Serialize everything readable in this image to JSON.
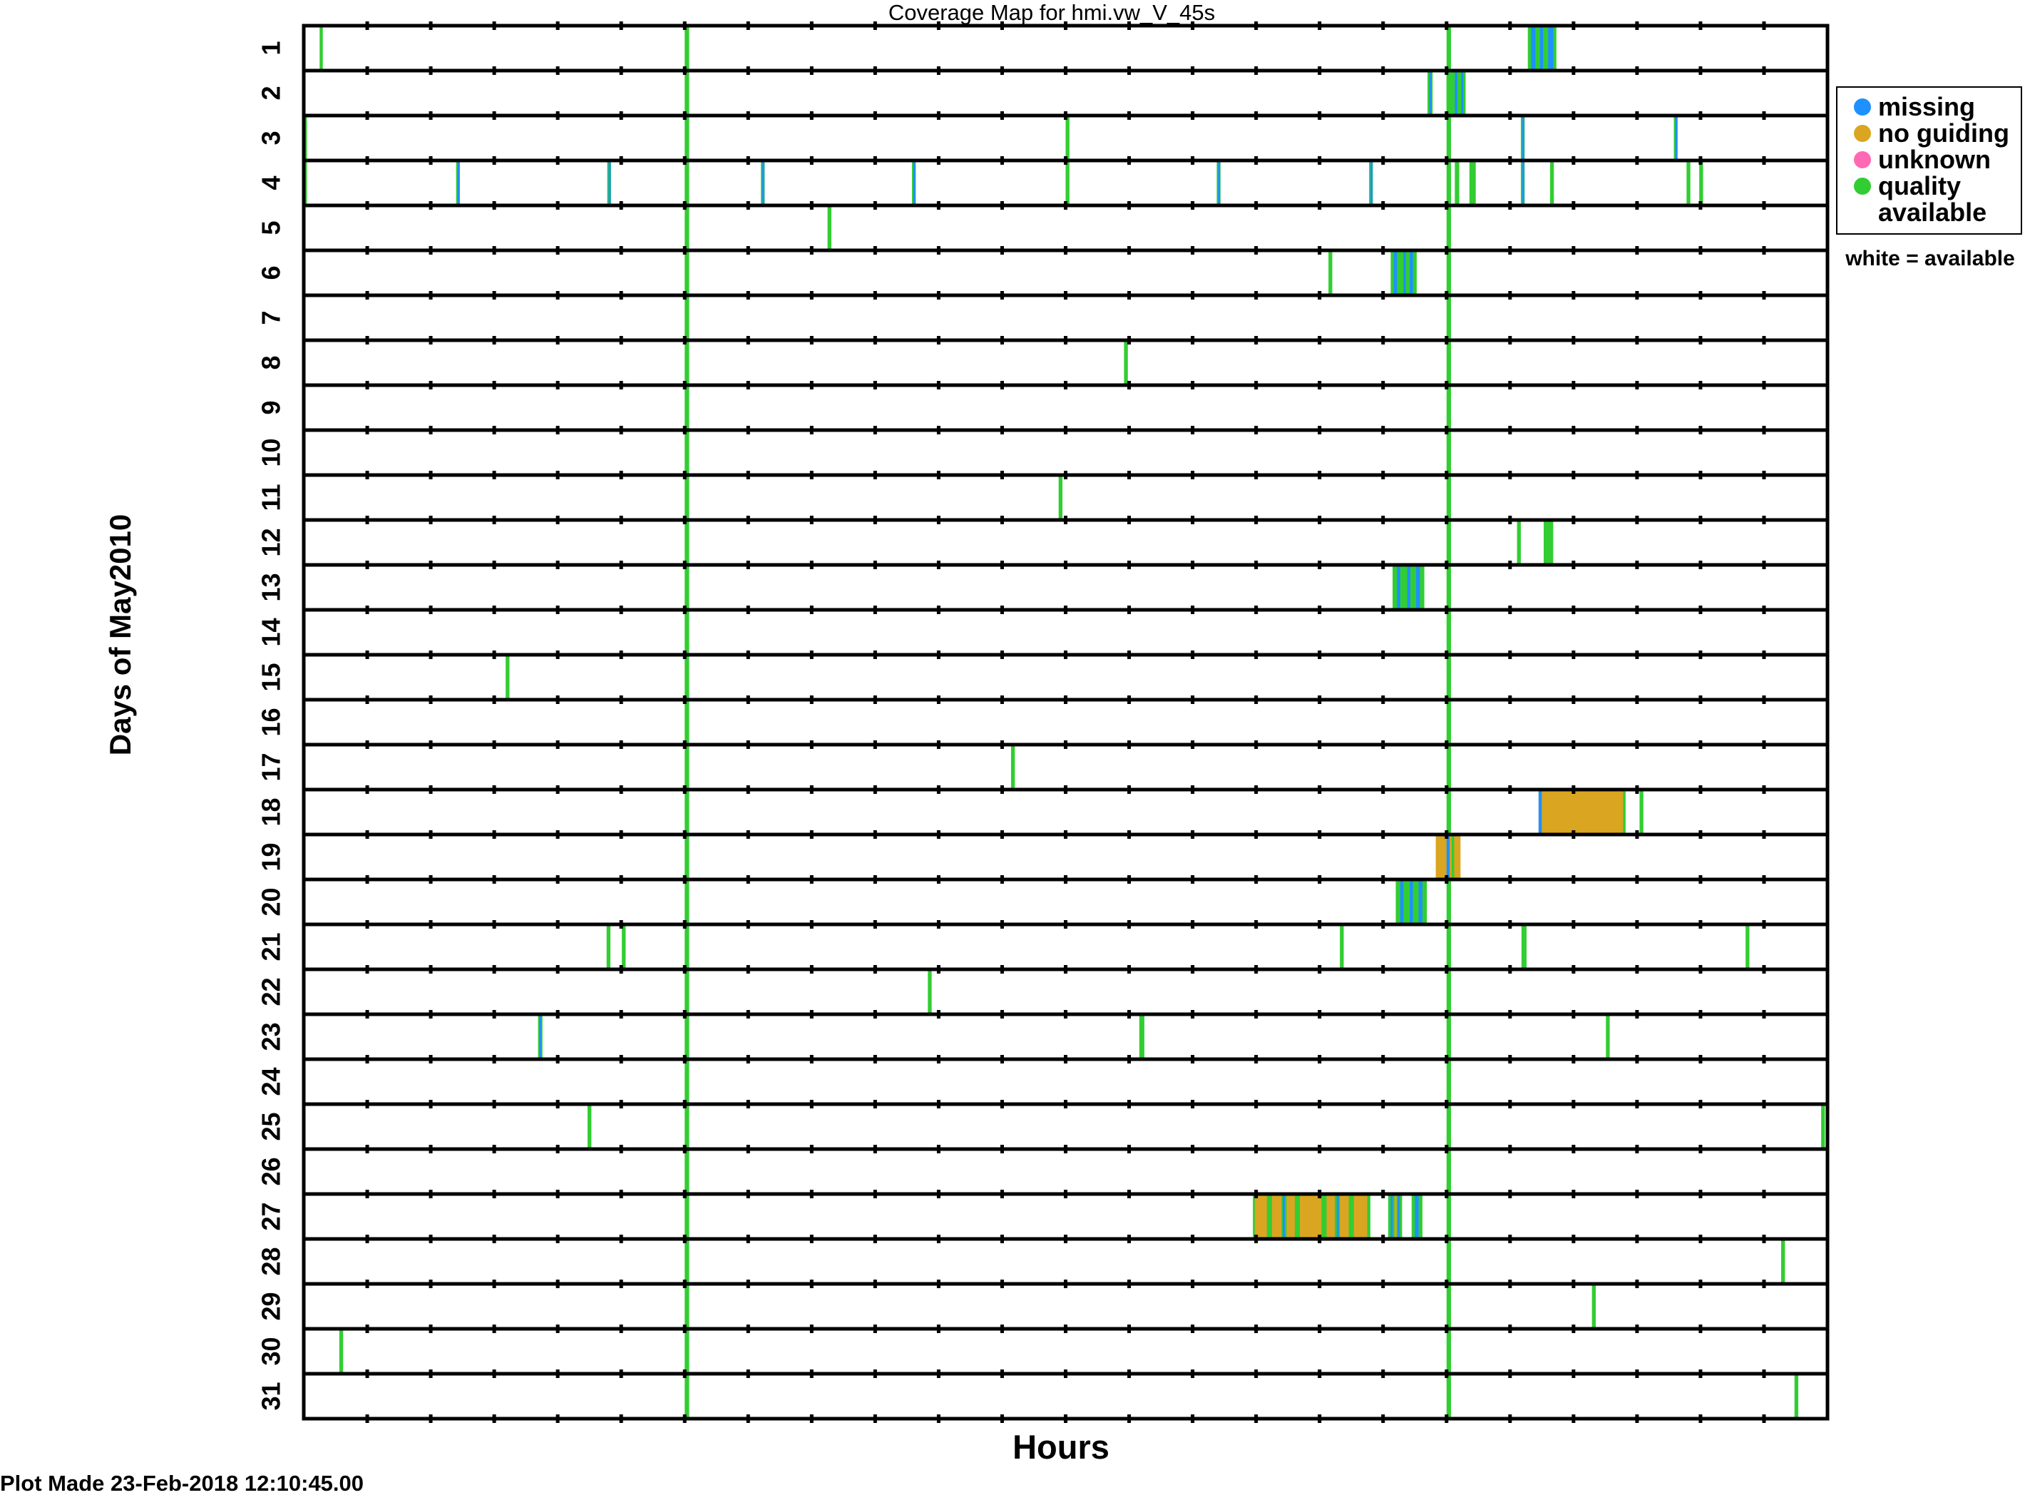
{
  "chart_data": {
    "type": "heatmap",
    "title": "Coverage Map for hmi.vw_V_45s",
    "xlabel": "Hours",
    "ylabel": "Days of May2010",
    "xlim": [
      0,
      24
    ],
    "days": [
      1,
      2,
      3,
      4,
      5,
      6,
      7,
      8,
      9,
      10,
      11,
      12,
      13,
      14,
      15,
      16,
      17,
      18,
      19,
      20,
      21,
      22,
      23,
      24,
      25,
      26,
      27,
      28,
      29,
      30,
      31
    ],
    "legend": {
      "placement": "right",
      "entries": [
        {
          "label": "missing",
          "status": "missing",
          "color": "#1e90ff"
        },
        {
          "label": "no guiding",
          "status": "noguide",
          "color": "#daa520"
        },
        {
          "label": "unknown",
          "status": "unknown",
          "color": "#ff69b4"
        },
        {
          "label": "quality available",
          "status": "quality",
          "color": "#32cd32"
        }
      ],
      "note": "white = available"
    },
    "daily_quality_hours": [
      6.0,
      18.0
    ],
    "events": {
      "1": [
        [
          0.25,
          0.3,
          "quality"
        ],
        [
          19.28,
          19.73,
          "quality"
        ],
        [
          19.33,
          19.4,
          "missing"
        ],
        [
          19.47,
          19.52,
          "missing"
        ],
        [
          19.6,
          19.68,
          "missing"
        ]
      ],
      "2": [
        [
          17.7,
          17.78,
          "quality"
        ],
        [
          17.73,
          17.76,
          "missing"
        ],
        [
          18.0,
          18.3,
          "quality"
        ],
        [
          18.13,
          18.17,
          "missing"
        ],
        [
          18.23,
          18.25,
          "missing"
        ]
      ],
      "3": [
        [
          0.0,
          0.05,
          "quality"
        ],
        [
          12.0,
          12.06,
          "quality"
        ],
        [
          19.17,
          19.23,
          "quality"
        ],
        [
          19.19,
          19.21,
          "missing"
        ],
        [
          21.58,
          21.64,
          "quality"
        ],
        [
          21.6,
          21.62,
          "missing"
        ]
      ],
      "4": [
        [
          0.0,
          0.05,
          "quality"
        ],
        [
          2.4,
          2.46,
          "quality"
        ],
        [
          2.42,
          2.44,
          "missing"
        ],
        [
          4.78,
          4.84,
          "quality"
        ],
        [
          4.8,
          4.82,
          "missing"
        ],
        [
          7.2,
          7.26,
          "quality"
        ],
        [
          7.22,
          7.24,
          "missing"
        ],
        [
          9.58,
          9.64,
          "quality"
        ],
        [
          9.6,
          9.62,
          "missing"
        ],
        [
          12.0,
          12.06,
          "quality"
        ],
        [
          14.38,
          14.44,
          "quality"
        ],
        [
          14.4,
          14.42,
          "missing"
        ],
        [
          16.78,
          16.84,
          "quality"
        ],
        [
          16.8,
          16.82,
          "missing"
        ],
        [
          18.13,
          18.2,
          "quality"
        ],
        [
          18.36,
          18.46,
          "quality"
        ],
        [
          19.17,
          19.23,
          "quality"
        ],
        [
          19.19,
          19.21,
          "missing"
        ],
        [
          19.63,
          19.69,
          "quality"
        ],
        [
          21.78,
          21.84,
          "quality"
        ],
        [
          21.98,
          22.04,
          "quality"
        ]
      ],
      "5": [
        [
          8.25,
          8.31,
          "quality"
        ]
      ],
      "6": [
        [
          16.14,
          16.2,
          "quality"
        ],
        [
          17.12,
          17.53,
          "quality"
        ],
        [
          17.17,
          17.22,
          "missing"
        ],
        [
          17.32,
          17.36,
          "missing"
        ],
        [
          17.42,
          17.47,
          "missing"
        ]
      ],
      "7": [],
      "8": [
        [
          12.92,
          12.98,
          "quality"
        ]
      ],
      "9": [],
      "10": [],
      "11": [
        [
          11.89,
          11.95,
          "quality"
        ]
      ],
      "12": [
        [
          19.11,
          19.17,
          "quality"
        ],
        [
          19.53,
          19.68,
          "quality"
        ]
      ],
      "13": [
        [
          17.15,
          17.65,
          "quality"
        ],
        [
          17.22,
          17.27,
          "missing"
        ],
        [
          17.38,
          17.43,
          "missing"
        ],
        [
          17.52,
          17.58,
          "missing"
        ]
      ],
      "14": [],
      "15": [
        [
          3.18,
          3.24,
          "quality"
        ]
      ],
      "16": [],
      "17": [
        [
          11.14,
          11.2,
          "quality"
        ]
      ],
      "18": [
        [
          19.45,
          20.8,
          "noguide"
        ],
        [
          19.45,
          19.5,
          "missing"
        ],
        [
          20.78,
          20.82,
          "quality"
        ],
        [
          21.04,
          21.1,
          "quality"
        ]
      ],
      "19": [
        [
          17.83,
          18.22,
          "noguide"
        ],
        [
          18.0,
          18.05,
          "missing"
        ],
        [
          18.08,
          18.12,
          "quality"
        ]
      ],
      "20": [
        [
          17.2,
          17.69,
          "quality"
        ],
        [
          17.27,
          17.32,
          "missing"
        ],
        [
          17.42,
          17.47,
          "missing"
        ],
        [
          17.56,
          17.62,
          "missing"
        ]
      ],
      "21": [
        [
          4.77,
          4.83,
          "quality"
        ],
        [
          5.01,
          5.07,
          "quality"
        ],
        [
          16.32,
          16.38,
          "quality"
        ],
        [
          19.18,
          19.26,
          "quality"
        ],
        [
          22.71,
          22.77,
          "quality"
        ]
      ],
      "22": [
        [
          9.83,
          9.89,
          "quality"
        ]
      ],
      "23": [
        [
          3.69,
          3.76,
          "quality"
        ],
        [
          3.71,
          3.74,
          "missing"
        ],
        [
          13.16,
          13.24,
          "quality"
        ],
        [
          20.51,
          20.57,
          "quality"
        ]
      ],
      "24": [],
      "25": [
        [
          4.47,
          4.53,
          "quality"
        ],
        [
          23.9,
          23.96,
          "quality"
        ]
      ],
      "26": [],
      "27": [
        [
          14.95,
          16.8,
          "quality"
        ],
        [
          14.98,
          15.17,
          "noguide"
        ],
        [
          15.25,
          15.4,
          "noguide"
        ],
        [
          15.48,
          15.61,
          "noguide"
        ],
        [
          15.69,
          16.03,
          "noguide"
        ],
        [
          16.11,
          16.24,
          "noguide"
        ],
        [
          16.32,
          16.46,
          "noguide"
        ],
        [
          16.54,
          16.75,
          "noguide"
        ],
        [
          15.42,
          15.44,
          "missing"
        ],
        [
          16.27,
          16.29,
          "missing"
        ],
        [
          17.08,
          17.3,
          "quality"
        ],
        [
          17.12,
          17.15,
          "missing"
        ],
        [
          17.18,
          17.2,
          "noguide"
        ],
        [
          17.23,
          17.26,
          "missing"
        ],
        [
          17.45,
          17.62,
          "quality"
        ],
        [
          17.5,
          17.56,
          "missing"
        ]
      ],
      "28": [
        [
          23.27,
          23.33,
          "quality"
        ]
      ],
      "29": [
        [
          20.29,
          20.35,
          "quality"
        ]
      ],
      "30": [
        [
          0.56,
          0.62,
          "quality"
        ]
      ],
      "31": [
        [
          23.48,
          23.54,
          "quality"
        ]
      ]
    }
  },
  "footer": "Plot Made 23-Feb-2018 12:10:45.00"
}
